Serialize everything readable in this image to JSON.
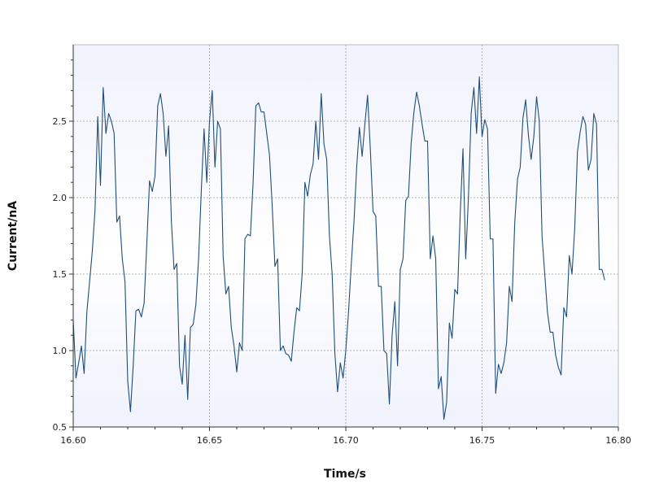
{
  "chart_data": {
    "type": "line",
    "xlabel": "Time/s",
    "ylabel": "Current/nA",
    "xlim": [
      16.6,
      16.8
    ],
    "ylim": [
      0.5,
      3.0
    ],
    "x_ticks": [
      "16.60",
      "16.65",
      "16.70",
      "16.75",
      "16.80"
    ],
    "y_ticks": [
      "0.5",
      "1.0",
      "1.5",
      "2.0",
      "2.5"
    ],
    "grid": true,
    "line_color": "#1f4e79",
    "background_top": "#f0f2fc",
    "background_mid": "#ffffff",
    "series": [
      {
        "x_start": 16.6,
        "x_step": 0.001,
        "y": [
          1.2,
          0.82,
          0.92,
          1.03,
          0.85,
          1.25,
          1.45,
          1.65,
          1.92,
          2.53,
          2.08,
          2.72,
          2.42,
          2.55,
          2.5,
          2.42,
          1.84,
          1.88,
          1.6,
          1.45,
          0.8,
          0.6,
          0.9,
          1.26,
          1.27,
          1.22,
          1.31,
          1.7,
          2.11,
          2.04,
          2.14,
          2.6,
          2.68,
          2.55,
          2.27,
          2.47,
          1.85,
          1.53,
          1.57,
          0.9,
          0.78,
          1.1,
          0.68,
          1.15,
          1.17,
          1.3,
          1.6,
          2.05,
          2.45,
          2.1,
          2.5,
          2.7,
          2.2,
          2.5,
          2.45,
          1.62,
          1.37,
          1.42,
          1.15,
          1.03,
          0.86,
          1.05,
          1.0,
          1.73,
          1.76,
          1.75,
          2.1,
          2.6,
          2.62,
          2.56,
          2.56,
          2.42,
          2.28,
          1.95,
          1.55,
          1.6,
          1.0,
          1.03,
          0.98,
          0.97,
          0.93,
          1.12,
          1.28,
          1.26,
          1.5,
          2.1,
          2.01,
          2.15,
          2.22,
          2.5,
          2.25,
          2.68,
          2.35,
          2.25,
          1.75,
          1.5,
          0.98,
          0.73,
          0.92,
          0.82,
          1.0,
          1.25,
          1.56,
          1.84,
          2.2,
          2.46,
          2.27,
          2.48,
          2.67,
          2.32,
          1.91,
          1.88,
          1.42,
          1.42,
          1.0,
          0.98,
          0.65,
          1.1,
          1.32,
          0.9,
          1.53,
          1.6,
          1.98,
          2.01,
          2.36,
          2.56,
          2.69,
          2.6,
          2.48,
          2.37,
          2.37,
          1.6,
          1.75,
          1.6,
          0.75,
          0.83,
          0.55,
          0.66,
          1.18,
          1.08,
          1.4,
          1.37,
          1.9,
          2.32,
          1.6,
          2.0,
          2.55,
          2.72,
          2.42,
          2.79,
          2.4,
          2.51,
          2.45,
          1.73,
          1.73,
          0.72,
          0.91,
          0.85,
          0.92,
          1.05,
          1.42,
          1.32,
          1.84,
          2.12,
          2.2,
          2.52,
          2.64,
          2.41,
          2.25,
          2.4,
          2.66,
          2.5,
          1.75,
          1.5,
          1.25,
          1.12,
          1.12,
          0.97,
          0.89,
          0.84,
          1.28,
          1.22,
          1.62,
          1.5,
          1.8,
          2.3,
          2.43,
          2.53,
          2.48,
          2.18,
          2.25,
          2.55,
          2.48,
          1.53,
          1.53,
          1.46
        ]
      }
    ]
  }
}
